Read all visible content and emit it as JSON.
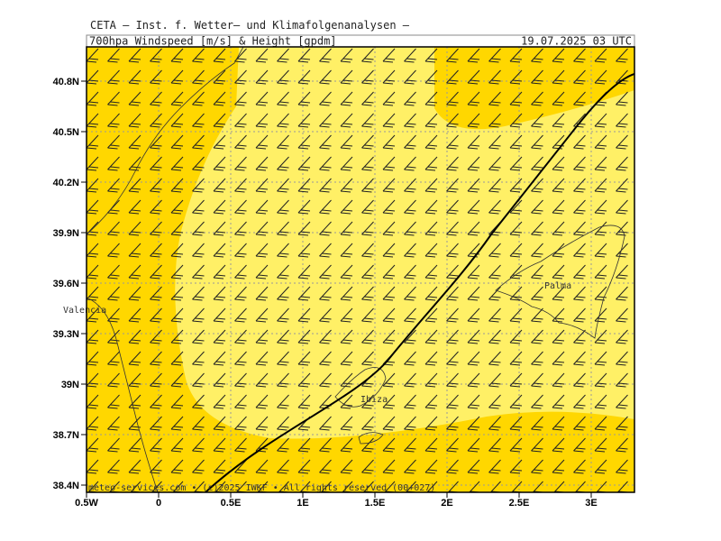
{
  "header": {
    "institute": "CETA – Inst. f. Wetter– und Klimafolgenanalysen –",
    "product": "700hpa_Windspeed_[m/s]_&_Height_[gpdm]",
    "valid": "19.07.2025 03 UTC"
  },
  "map": {
    "lat_labels": [
      "40.8N",
      "40.5N",
      "40.2N",
      "39.9N",
      "39.6N",
      "39.3N",
      "39N",
      "38.7N",
      "38.4N"
    ],
    "lon_labels": [
      "0.5W",
      "0",
      "0.5E",
      "1E",
      "1.5E",
      "2E",
      "2.5E",
      "3E"
    ],
    "places": {
      "valencia": "Valencia",
      "palma": "Palma",
      "ibiza": "Ibiza"
    },
    "footer": "meteo-services.com • (c)2025 IWKF • All rights reserved (00+027)"
  }
}
